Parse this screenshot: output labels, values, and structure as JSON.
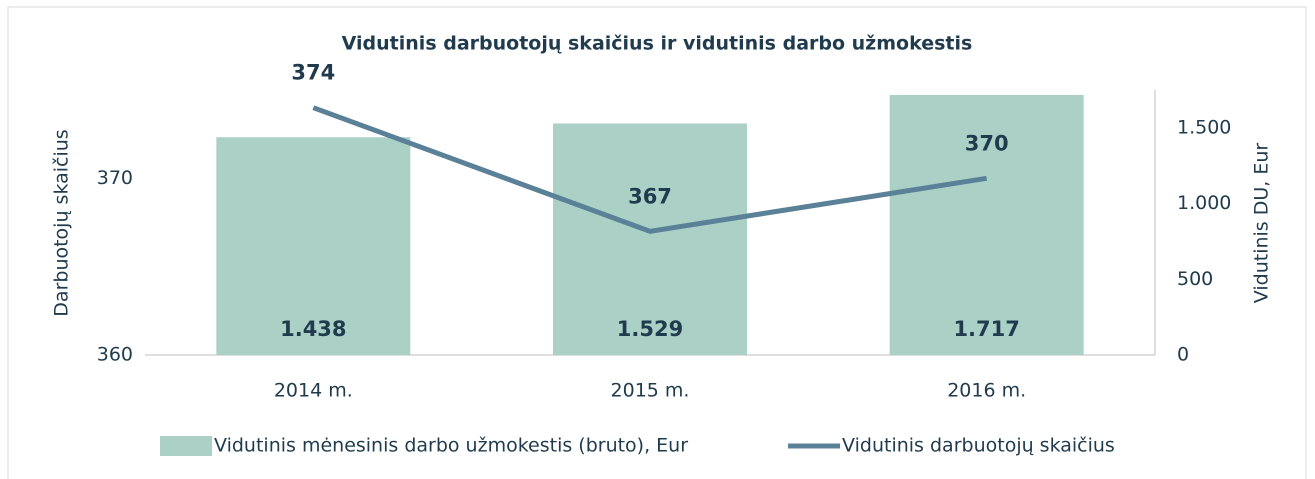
{
  "chart_data": {
    "type": "combo",
    "title": "Vidutinis darbuotojų skaičius ir vidutinis darbo užmokestis",
    "ylabel": "Darbuotojų skaičius",
    "y2label": "Vidutinis DU, Eur",
    "categories": [
      "2014 m.",
      "2015 m.",
      "2016 m."
    ],
    "series": [
      {
        "name": "Vidutinis mėnesinis darbo užmokestis (bruto), Eur",
        "type": "bar",
        "axis": "y2",
        "color": "#abd1c7",
        "values": [
          1438,
          1529,
          1717
        ],
        "value_labels": [
          "1.438",
          "1.529",
          "1.717"
        ]
      },
      {
        "name": "Vidutinis darbuotojų skaičius",
        "type": "line",
        "axis": "y",
        "color": "#5b8199",
        "values": [
          374,
          367,
          370
        ]
      }
    ],
    "ylim": [
      360,
      375
    ],
    "yticks": [
      360,
      370
    ],
    "y2lim": [
      0,
      1750
    ],
    "y2ticks": [
      0,
      500,
      {
        "value": 1000,
        "label": "1.000"
      },
      {
        "value": 1500,
        "label": "1.500"
      }
    ],
    "legend": "bottom"
  }
}
